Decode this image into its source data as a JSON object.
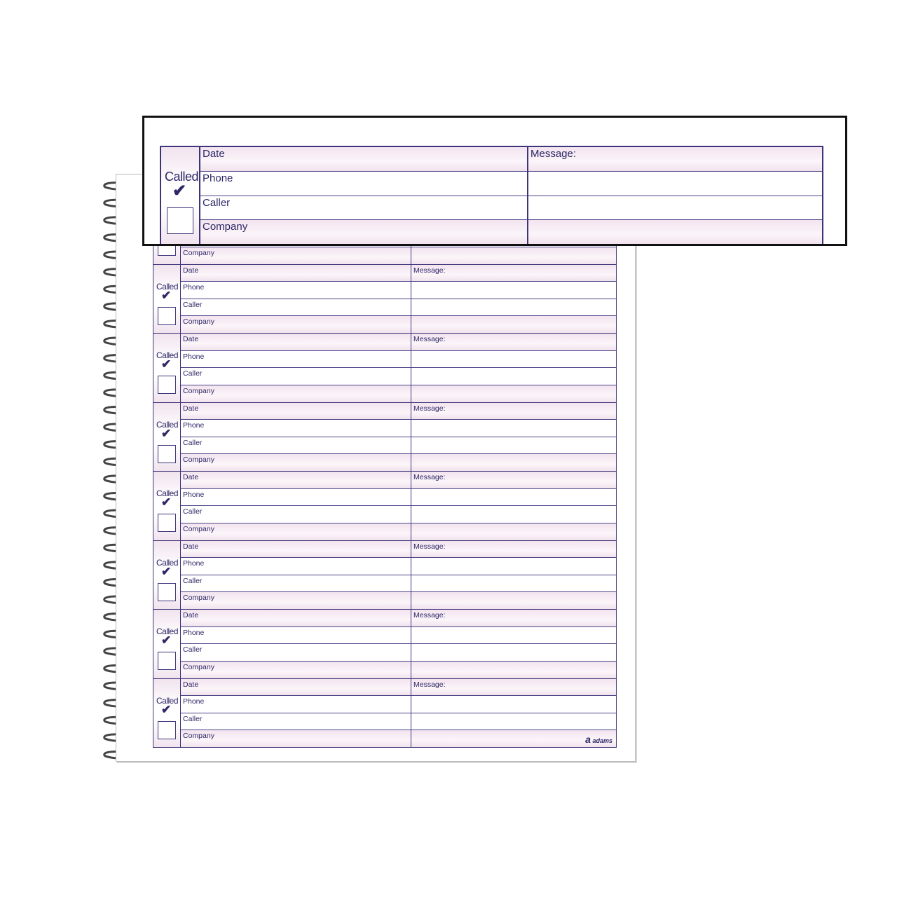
{
  "form": {
    "called_label": "Called",
    "check_mark": "✔",
    "date_label": "Date",
    "phone_label": "Phone",
    "caller_label": "Caller",
    "company_label": "Company",
    "message_label": "Message:"
  },
  "brand": {
    "logo_mark": "a",
    "logo_text": "adams"
  },
  "colors": {
    "ink": "#2d2766",
    "tint": "#f1e3ee"
  }
}
